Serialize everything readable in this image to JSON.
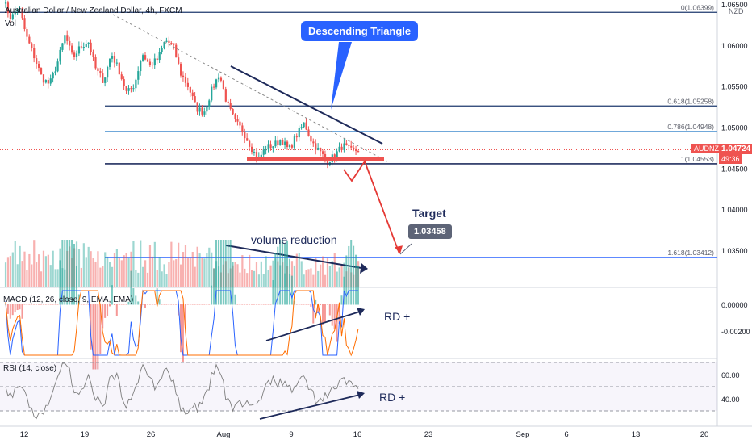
{
  "header": {
    "symbol_title": "Australian Dollar / New Zealand Dollar, 4h, FXCM",
    "volume_label": "Vol",
    "currency": "NZD"
  },
  "annotations": {
    "pattern": "Descending Triangle",
    "volume": "volume reduction",
    "target_title": "Target",
    "target_value": "1.03458",
    "macd_div": "RD +",
    "rsi_div": "RD +"
  },
  "price_axis": {
    "ticks": [
      "1.06500",
      "1.06000",
      "1.05500",
      "1.05000",
      "1.04500",
      "1.04000",
      "1.03500"
    ],
    "current_label": "AUDNZD",
    "current_price": "1.04724",
    "countdown": "49:36"
  },
  "fib_levels": [
    {
      "label": "0(1.06399)",
      "value": 1.06399
    },
    {
      "label": "0.618(1.05258)",
      "value": 1.05258
    },
    {
      "label": "0.786(1.04948)",
      "value": 1.04948
    },
    {
      "label": "1(1.04553)",
      "value": 1.04553
    },
    {
      "label": "1.618(1.03412)",
      "value": 1.03412
    }
  ],
  "macd": {
    "label": "MACD (12, 26, close, 9, EMA, EMA)",
    "ticks": [
      "0.00000",
      "-0.00200"
    ]
  },
  "rsi": {
    "label": "RSI (14, close)",
    "ticks": [
      "60.00",
      "40.00"
    ]
  },
  "time_axis": [
    "12",
    "19",
    "26",
    "Aug",
    "9",
    "16",
    "23",
    "Sep",
    "6",
    "13",
    "20"
  ],
  "colors": {
    "up": "#26a69a",
    "down": "#ef5350",
    "fib_dark": "#1e3a6e",
    "fib_light": "#5b9bd5",
    "accent": "#2962ff",
    "macd": "#2962ff",
    "signal": "#ff6d00",
    "rsi": "#7e7e7e"
  },
  "chart_data": {
    "type": "candlestick",
    "title": "Australian Dollar / New Zealand Dollar, 4h, FXCM",
    "ylim": [
      1.0325,
      1.0675
    ],
    "close_path": [
      1.0655,
      1.0632,
      1.0648,
      1.061,
      1.0586,
      1.056,
      1.0552,
      1.0578,
      1.0612,
      1.0584,
      1.0598,
      1.0605,
      1.057,
      1.0556,
      1.059,
      1.0569,
      1.0541,
      1.0552,
      1.059,
      1.0575,
      1.0583,
      1.0606,
      1.0599,
      1.0565,
      1.0549,
      1.0523,
      1.0518,
      1.0545,
      1.0565,
      1.0528,
      1.0507,
      1.0496,
      1.0478,
      1.046,
      1.0475,
      1.0478,
      1.0485,
      1.0472,
      1.049,
      1.0505,
      1.0482,
      1.047,
      1.0458,
      1.0466,
      1.0478,
      1.0471,
      1.0472
    ],
    "projection": {
      "from": 1.0455,
      "to": 1.03458
    }
  }
}
